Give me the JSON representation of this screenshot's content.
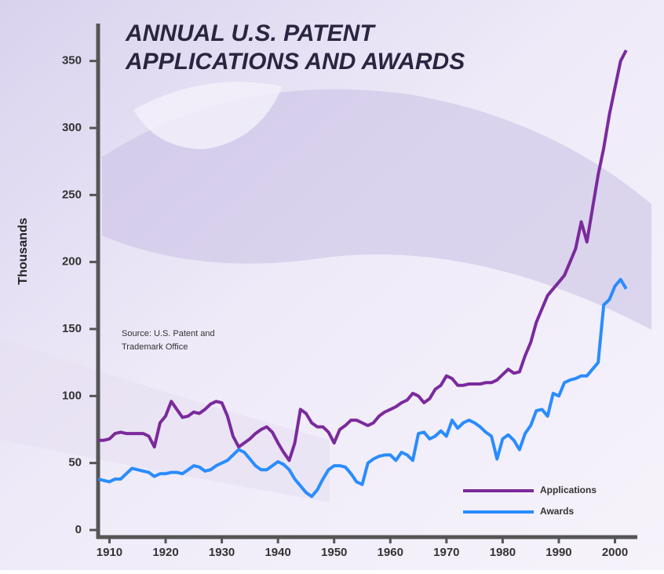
{
  "chart_data": {
    "type": "line",
    "title": [
      "ANNUAL U.S. PATENT",
      "APPLICATIONS AND AWARDS"
    ],
    "source": [
      "Source: U.S. Patent and",
      "Trademark Office"
    ],
    "y_label": "Thousands",
    "x": [
      1908,
      1909,
      1910,
      1911,
      1912,
      1913,
      1914,
      1915,
      1916,
      1917,
      1918,
      1919,
      1920,
      1921,
      1922,
      1923,
      1924,
      1925,
      1926,
      1927,
      1928,
      1929,
      1930,
      1931,
      1932,
      1933,
      1934,
      1935,
      1936,
      1937,
      1938,
      1939,
      1940,
      1941,
      1942,
      1943,
      1944,
      1945,
      1946,
      1947,
      1948,
      1949,
      1950,
      1951,
      1952,
      1953,
      1954,
      1955,
      1956,
      1957,
      1958,
      1959,
      1960,
      1961,
      1962,
      1963,
      1964,
      1965,
      1966,
      1967,
      1968,
      1969,
      1970,
      1971,
      1972,
      1973,
      1974,
      1975,
      1976,
      1977,
      1978,
      1979,
      1980,
      1981,
      1982,
      1983,
      1984,
      1985,
      1986,
      1987,
      1988,
      1989,
      1990,
      1991,
      1992,
      1993,
      1994,
      1995,
      1996,
      1997,
      1998,
      1999,
      2000,
      2001,
      2002
    ],
    "series": [
      {
        "name": "Applications",
        "color": "#7b2a9c",
        "values": [
          67,
          67,
          68,
          72,
          73,
          72,
          72,
          72,
          72,
          70,
          62,
          80,
          85,
          96,
          90,
          84,
          85,
          88,
          87,
          90,
          94,
          96,
          95,
          85,
          70,
          62,
          65,
          68,
          72,
          75,
          77,
          73,
          65,
          58,
          52,
          65,
          90,
          87,
          80,
          77,
          77,
          73,
          65,
          75,
          78,
          82,
          82,
          80,
          78,
          80,
          85,
          88,
          90,
          92,
          95,
          97,
          102,
          100,
          95,
          98,
          105,
          108,
          115,
          113,
          108,
          108,
          109,
          109,
          109,
          110,
          110,
          112,
          116,
          120,
          117,
          118,
          130,
          140,
          155,
          165,
          175,
          180,
          185,
          190,
          200,
          210,
          230,
          215,
          240,
          265,
          285,
          310,
          330,
          350,
          358
        ]
      },
      {
        "name": "Awards",
        "color": "#2a8cff",
        "values": [
          38,
          37,
          36,
          38,
          38,
          42,
          46,
          45,
          44,
          43,
          40,
          42,
          42,
          43,
          43,
          42,
          45,
          48,
          47,
          44,
          45,
          48,
          50,
          52,
          56,
          60,
          58,
          53,
          48,
          45,
          45,
          48,
          51,
          49,
          45,
          38,
          33,
          28,
          25,
          30,
          38,
          45,
          48,
          48,
          47,
          42,
          36,
          34,
          50,
          53,
          55,
          56,
          56,
          52,
          58,
          56,
          52,
          72,
          73,
          68,
          70,
          74,
          70,
          82,
          76,
          80,
          82,
          80,
          77,
          73,
          70,
          53,
          68,
          71,
          67,
          60,
          72,
          78,
          89,
          90,
          85,
          102,
          100,
          110,
          112,
          113,
          115,
          115,
          120,
          125,
          168,
          172,
          182,
          187,
          180
        ]
      }
    ],
    "xlim": [
      1907,
      2003
    ],
    "xticks": [
      1910,
      1920,
      1930,
      1940,
      1950,
      1960,
      1970,
      1980,
      1990,
      2000
    ],
    "ylim": [
      0,
      375
    ],
    "yticks": [
      0,
      50,
      100,
      150,
      200,
      250,
      300,
      350
    ],
    "legend": "lower-right"
  }
}
